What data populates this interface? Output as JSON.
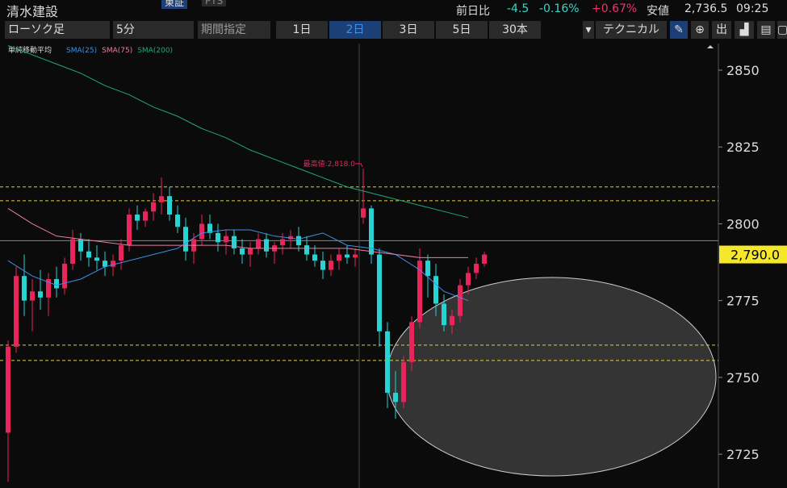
{
  "header": {
    "title": "清水建設",
    "tabs": [
      "東証",
      "PTS"
    ],
    "change_label": "前日比",
    "change": "-4.5",
    "change_pct": "-0.16%",
    "day_pct": "+0.67%",
    "low_label": "安値",
    "low": "2,736.5",
    "time": "09:25"
  },
  "toolbar": {
    "chart_type": "ローソク足",
    "interval": "5分",
    "period": "期間指定",
    "ranges": [
      "1日",
      "2日",
      "3日",
      "5日",
      "30本"
    ],
    "selected_range": 1,
    "technical": "テクニカル",
    "export": "出"
  },
  "chart": {
    "legend_title": "単純移動平均",
    "candles": [
      [
        2732,
        2762,
        2716,
        2760
      ],
      [
        2760,
        2786,
        2758,
        2783
      ],
      [
        2783,
        2790,
        2770,
        2775
      ],
      [
        2775,
        2782,
        2765,
        2778
      ],
      [
        2778,
        2785,
        2772,
        2776
      ],
      [
        2776,
        2784,
        2770,
        2782
      ],
      [
        2782,
        2786,
        2776,
        2779
      ],
      [
        2779,
        2789,
        2777,
        2787
      ],
      [
        2787,
        2798,
        2785,
        2795
      ],
      [
        2795,
        2797,
        2788,
        2791
      ],
      [
        2791,
        2795,
        2786,
        2789
      ],
      [
        2789,
        2793,
        2785,
        2788
      ],
      [
        2788,
        2791,
        2783,
        2786
      ],
      [
        2786,
        2790,
        2783,
        2788
      ],
      [
        2788,
        2795,
        2785,
        2793
      ],
      [
        2793,
        2805,
        2791,
        2803
      ],
      [
        2803,
        2806,
        2798,
        2801
      ],
      [
        2801,
        2805,
        2799,
        2804
      ],
      [
        2804,
        2810,
        2801,
        2807
      ],
      [
        2807,
        2815,
        2803,
        2809
      ],
      [
        2809,
        2812,
        2801,
        2803
      ],
      [
        2803,
        2806,
        2797,
        2799
      ],
      [
        2799,
        2802,
        2788,
        2791
      ],
      [
        2791,
        2797,
        2787,
        2795
      ],
      [
        2795,
        2803,
        2793,
        2800
      ],
      [
        2800,
        2803,
        2795,
        2797
      ],
      [
        2797,
        2800,
        2791,
        2794
      ],
      [
        2794,
        2798,
        2790,
        2796
      ],
      [
        2796,
        2798,
        2790,
        2792
      ],
      [
        2792,
        2795,
        2787,
        2790
      ],
      [
        2790,
        2794,
        2786,
        2792
      ],
      [
        2792,
        2797,
        2790,
        2795
      ],
      [
        2795,
        2797,
        2789,
        2791
      ],
      [
        2791,
        2794,
        2787,
        2793
      ],
      [
        2793,
        2797,
        2790,
        2795
      ],
      [
        2795,
        2798,
        2792,
        2796
      ],
      [
        2796,
        2799,
        2791,
        2793
      ],
      [
        2793,
        2796,
        2788,
        2790
      ],
      [
        2790,
        2793,
        2786,
        2788
      ],
      [
        2788,
        2791,
        2782,
        2785
      ],
      [
        2785,
        2790,
        2783,
        2788
      ],
      [
        2788,
        2792,
        2785,
        2790
      ],
      [
        2790,
        2793,
        2787,
        2789
      ],
      [
        2789,
        2792,
        2786,
        2790
      ],
      [
        2802,
        2818,
        2800,
        2805
      ],
      [
        2805,
        2806,
        2787,
        2790
      ],
      [
        2790,
        2792,
        2760,
        2765
      ],
      [
        2765,
        2768,
        2740,
        2745
      ],
      [
        2745,
        2752,
        2736.5,
        2742
      ],
      [
        2742,
        2757,
        2740,
        2755
      ],
      [
        2755,
        2770,
        2752,
        2768
      ],
      [
        2768,
        2792,
        2766,
        2788
      ],
      [
        2788,
        2790,
        2776,
        2783
      ],
      [
        2783,
        2787,
        2770,
        2774
      ],
      [
        2774,
        2777,
        2765,
        2767
      ],
      [
        2767,
        2772,
        2764,
        2770
      ],
      [
        2770,
        2782,
        2768,
        2780
      ],
      [
        2780,
        2786,
        2777,
        2784
      ],
      [
        2784,
        2789,
        2782,
        2787
      ],
      [
        2787,
        2791,
        2786,
        2790
      ]
    ],
    "up_color": "#e8245a",
    "down_color": "#27d3d3",
    "sma": [
      {
        "name": "SMA(25)",
        "color": "#3d8fe8",
        "values": [
          2788,
          2783,
          2780,
          2782,
          2786,
          2788,
          2790,
          2792,
          2797,
          2798,
          2798,
          2796,
          2795,
          2797,
          2793,
          2792,
          2790,
          2785,
          2778,
          2775
        ]
      },
      {
        "name": "SMA(75)",
        "color": "#e87fa0",
        "values": [
          2805,
          2800,
          2796,
          2795,
          2794,
          2793,
          2793,
          2793,
          2793,
          2793,
          2792,
          2792,
          2792,
          2792,
          2792,
          2791,
          2790,
          2789,
          2789,
          2789
        ]
      },
      {
        "name": "SMA(200)",
        "color": "#1fa77a",
        "values": [
          2858,
          2855,
          2852,
          2849,
          2845,
          2842,
          2838,
          2835,
          2831,
          2828,
          2824,
          2821,
          2818,
          2815,
          2812,
          2810,
          2808,
          2806,
          2804,
          2802
        ]
      }
    ],
    "high_annotation": "最高値:2,818.0",
    "high_value": 2818,
    "dashed_levels": [
      2812,
      2807.5,
      2760.5,
      2755.5
    ],
    "prev_close": 2794.5,
    "current_price": 2790,
    "current_price_label": "2,790.0",
    "ylim": [
      2714,
      2858.4
    ],
    "yticks": [
      2725,
      2750,
      2775,
      2800,
      2825,
      2850
    ]
  }
}
